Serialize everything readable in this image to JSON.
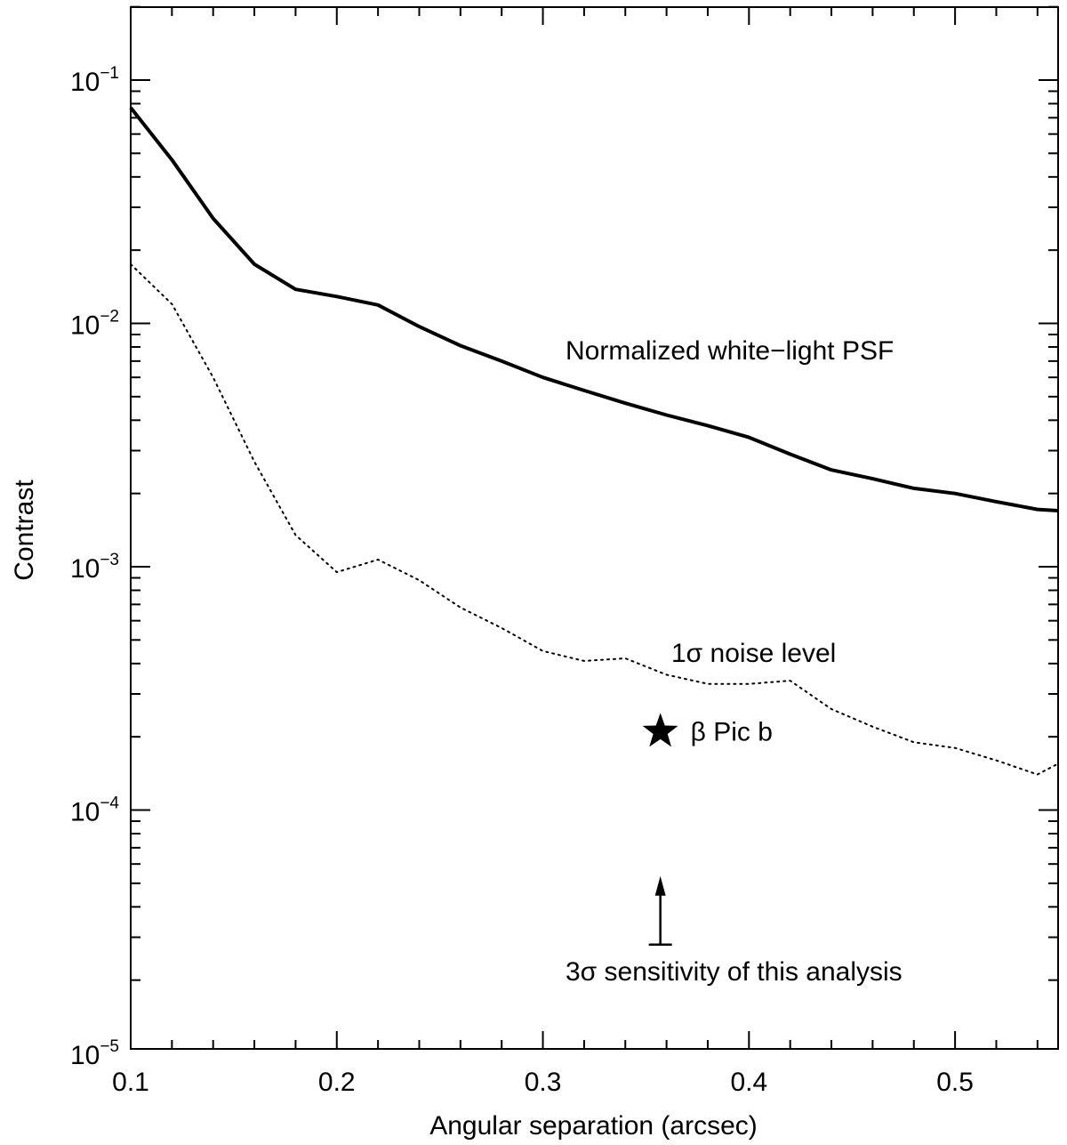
{
  "chart_data": {
    "type": "line",
    "title": "",
    "xlabel": "Angular separation (arcsec)",
    "ylabel": "Contrast",
    "yscale": "log",
    "xlim": [
      0.1,
      0.55
    ],
    "ylim": [
      1e-05,
      0.2
    ],
    "x_ticks": [
      0.1,
      0.2,
      0.3,
      0.4,
      0.5
    ],
    "x_tick_labels": [
      "0.1",
      "0.2",
      "0.3",
      "0.4",
      "0.5"
    ],
    "y_ticks": [
      {
        "base": "10",
        "exp": "−1",
        "value": 0.1
      },
      {
        "base": "10",
        "exp": "−2",
        "value": 0.01
      },
      {
        "base": "10",
        "exp": "−3",
        "value": 0.001
      },
      {
        "base": "10",
        "exp": "−4",
        "value": 0.0001
      },
      {
        "base": "10",
        "exp": "−5",
        "value": 1e-05
      }
    ],
    "series": [
      {
        "name": "Normalized white−light PSF",
        "style": "solid",
        "x": [
          0.1,
          0.12,
          0.14,
          0.16,
          0.18,
          0.2,
          0.22,
          0.24,
          0.26,
          0.28,
          0.3,
          0.32,
          0.34,
          0.36,
          0.38,
          0.4,
          0.42,
          0.44,
          0.46,
          0.48,
          0.5,
          0.52,
          0.54,
          0.55
        ],
        "y": [
          0.077,
          0.047,
          0.027,
          0.0175,
          0.0138,
          0.0129,
          0.0119,
          0.0097,
          0.0081,
          0.007,
          0.006,
          0.0053,
          0.0047,
          0.0042,
          0.0038,
          0.0034,
          0.0029,
          0.0025,
          0.0023,
          0.0021,
          0.002,
          0.00185,
          0.00172,
          0.0017
        ]
      },
      {
        "name": "1σ noise level",
        "style": "dotted",
        "x": [
          0.1,
          0.12,
          0.14,
          0.16,
          0.18,
          0.2,
          0.22,
          0.24,
          0.26,
          0.28,
          0.3,
          0.32,
          0.34,
          0.36,
          0.38,
          0.4,
          0.42,
          0.44,
          0.46,
          0.48,
          0.5,
          0.52,
          0.54,
          0.55
        ],
        "y": [
          0.0175,
          0.012,
          0.006,
          0.0027,
          0.00135,
          0.00095,
          0.00107,
          0.00088,
          0.00068,
          0.00056,
          0.00045,
          0.00041,
          0.00042,
          0.00036,
          0.00033,
          0.00033,
          0.00034,
          0.00026,
          0.00022,
          0.00019,
          0.00018,
          0.00016,
          0.00014,
          0.000155
        ]
      }
    ],
    "annotations": [
      {
        "text": "Normalized white−light PSF",
        "x": 0.32,
        "y": 0.008
      },
      {
        "text": "1σ noise level",
        "x": 0.36,
        "y": 0.00055
      },
      {
        "text": "β Pic b",
        "marker": "star",
        "x": 0.357,
        "y": 0.00021
      },
      {
        "text": "3σ sensitivity of this analysis",
        "marker": "up-arrow",
        "x": 0.357,
        "y": 2.8e-05
      }
    ]
  }
}
